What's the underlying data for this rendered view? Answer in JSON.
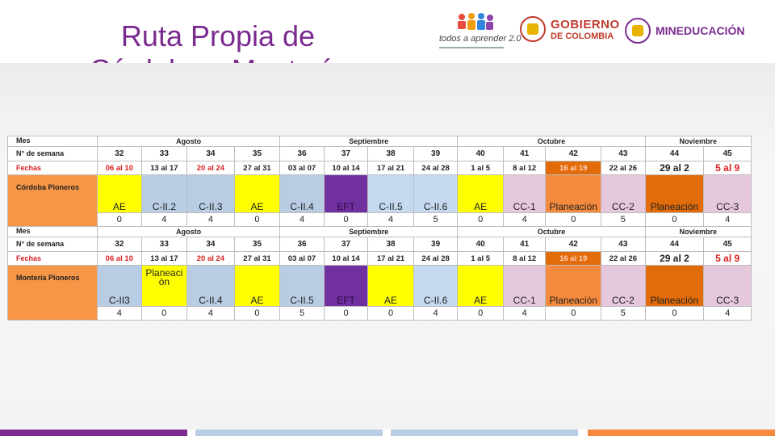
{
  "slide": {
    "title_line1": "Ruta Propia de",
    "title_line2": "Córdoba y Montería"
  },
  "logos": {
    "todos": "todos a aprender 2.0",
    "gobierno_line1": "GOBIERNO",
    "gobierno_line2": "DE COLOMBIA",
    "ministerio": "MINEDUCACIÓN"
  },
  "colors": {
    "title": "#7b2b8f",
    "label_orange": "#f79646",
    "yellow": "#ffff00",
    "blue": "#b8cce4",
    "purple": "#7030a0",
    "pink": "#e6c8dc",
    "orange": "#f58a3c",
    "dark_orange": "#e36c0a"
  },
  "table": {
    "labels": {
      "mes": "Mes",
      "semana": "N° de semana",
      "fechas": "Fechas"
    },
    "months": [
      "Agosto",
      "Septiembre",
      "Octubre",
      "Noviembre"
    ],
    "weeks": [
      "32",
      "33",
      "34",
      "35",
      "36",
      "37",
      "38",
      "39",
      "40",
      "41",
      "42",
      "43",
      "44",
      "45"
    ],
    "dates": [
      "06 al 10",
      "13 al 17",
      "20 al 24",
      "27 al 31",
      "03 al 07",
      "10 al 14",
      "17 al 21",
      "24 al 28",
      "1 al 5",
      "8 al 12",
      "16 al 19",
      "22 al 26",
      "29 al 2",
      "5 al 9"
    ],
    "sections": [
      {
        "name": "Córdoba Pioneros",
        "activities": [
          "AE",
          "C-II.2",
          "C-II.3",
          "AE",
          "C-II.4",
          "EFT",
          "C-II.5",
          "C-II.6",
          "AE",
          "CC-1",
          "Planeación",
          "CC-2",
          "Planeación",
          "CC-3"
        ],
        "numbers": [
          "0",
          "4",
          "4",
          "0",
          "4",
          "0",
          "4",
          "5",
          "0",
          "4",
          "0",
          "5",
          "0",
          "4"
        ]
      },
      {
        "name": "Montería Pioneros",
        "activities": [
          "C-II3",
          "Planeaci ón",
          "C-II.4",
          "AE",
          "C-II.5",
          "EFT",
          "AE",
          "C-II.6",
          "AE",
          "CC-1",
          "Planeación",
          "CC-2",
          "Planeación",
          "CC-3"
        ],
        "numbers": [
          "4",
          "0",
          "4",
          "0",
          "5",
          "0",
          "0",
          "4",
          "0",
          "4",
          "0",
          "5",
          "0",
          "4"
        ]
      }
    ]
  },
  "bottom_strip": [
    "#7b2b8f",
    "#b8cce4",
    "#f58a3c"
  ]
}
